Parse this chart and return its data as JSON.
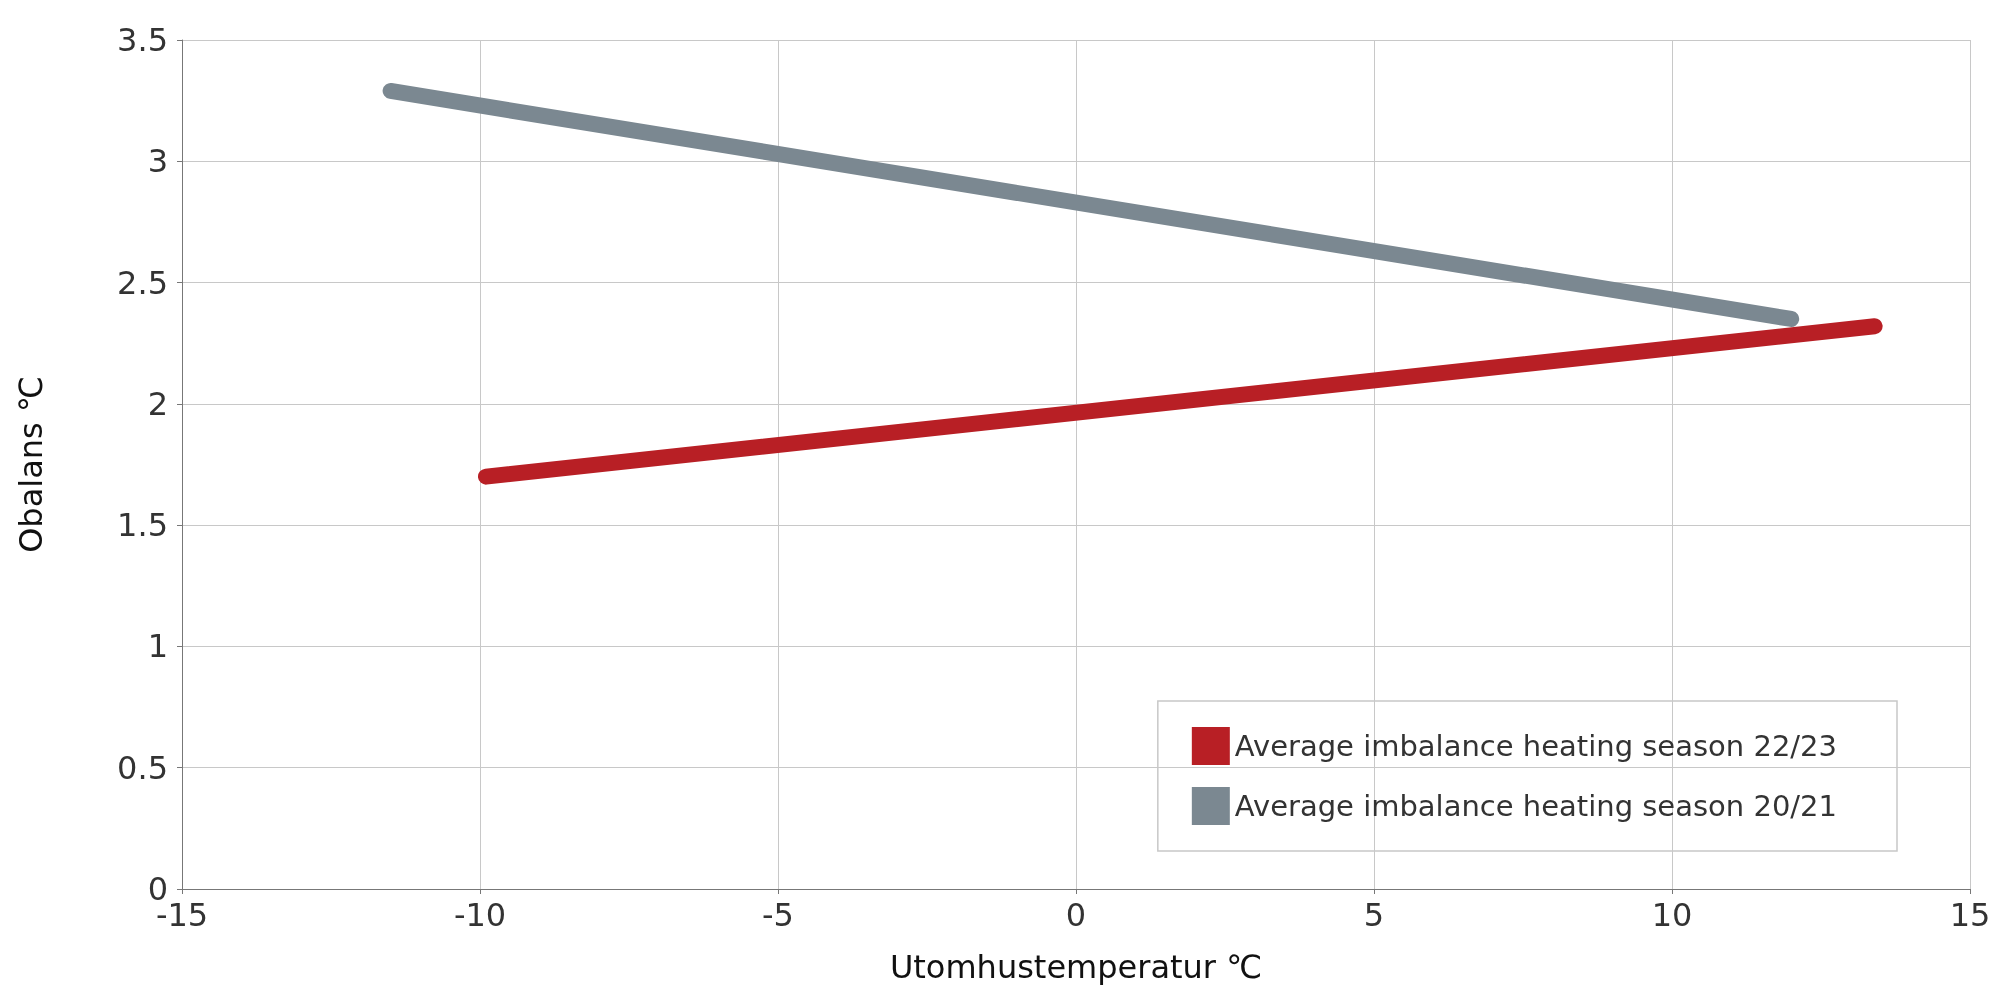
{
  "chart_data": {
    "type": "line",
    "xlabel": "Utomhustemperatur ℃",
    "ylabel": "Obalans ℃",
    "series": [
      {
        "name": "Average imbalance heating season 22/23",
        "color": "#b81f25",
        "x": [
          -9.9,
          13.4
        ],
        "values": [
          1.7,
          2.32
        ]
      },
      {
        "name": "Average imbalance heating season 20/21",
        "color": "#7b8891",
        "x": [
          -11.5,
          12.0
        ],
        "values": [
          3.29,
          2.35
        ]
      }
    ],
    "xlim": [
      -15,
      15
    ],
    "xticks": [
      -15,
      -10,
      -5,
      0,
      5,
      10,
      15
    ],
    "ylim": [
      0,
      3.5
    ],
    "yticks": [
      0,
      0.5,
      1,
      1.5,
      2,
      2.5,
      3,
      3.5
    ],
    "grid": true,
    "legend": "bottom right",
    "line_style": "solid"
  }
}
